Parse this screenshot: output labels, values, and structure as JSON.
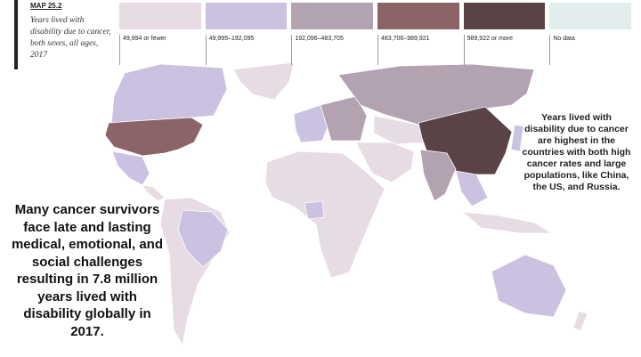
{
  "header": {
    "label": "MAP 25.2",
    "title": "Years lived with disability due to cancer, both sexes, all ages, 2017"
  },
  "legend": {
    "items": [
      {
        "label": "49,994 or fewer",
        "color": "#e8dce4"
      },
      {
        "label": "49,995–192,095",
        "color": "#cbc2e2"
      },
      {
        "label": "192,096–483,705",
        "color": "#b3a3b1"
      },
      {
        "label": "483,706–989,921",
        "color": "#8c6467"
      },
      {
        "label": "989,922 or more",
        "color": "#594346"
      },
      {
        "label": "No data",
        "color": "#e3eded"
      }
    ]
  },
  "annotations": {
    "right": "Years lived with disability due to cancer are highest in the countries with both high cancer rates and large populations, like China, the US, and Russia.",
    "left": "Many cancer survivors face late and lasting medical, emotional, and social challenges resulting in 7.8 million years lived with disability globally in 2017."
  }
}
